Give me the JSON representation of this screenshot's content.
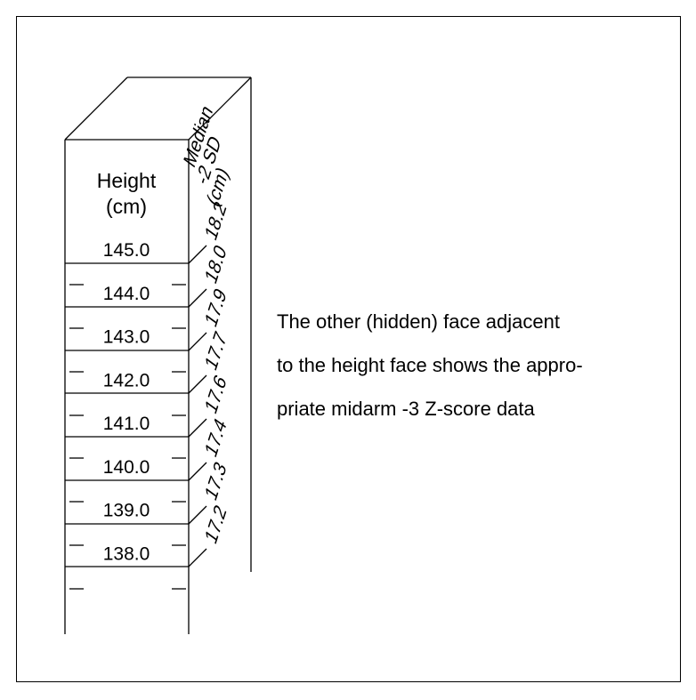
{
  "height_face": {
    "header_line1": "Height",
    "header_line2": "(cm)",
    "values": [
      "145.0",
      "144.0",
      "143.0",
      "142.0",
      "141.0",
      "140.0",
      "139.0",
      "138.0"
    ]
  },
  "side_face": {
    "header_line1": "Median",
    "header_line2": "-2 SD",
    "header_line3": "(cm)",
    "values": [
      "18.2",
      "18.0",
      "17.9",
      "17.7",
      "17.6",
      "17.4",
      "17.3",
      "17.2"
    ]
  },
  "note": {
    "line1": "The other (hidden) face adjacent",
    "line2": "to the height face shows the appro-",
    "line3": "priate midarm -3 Z-score data"
  }
}
